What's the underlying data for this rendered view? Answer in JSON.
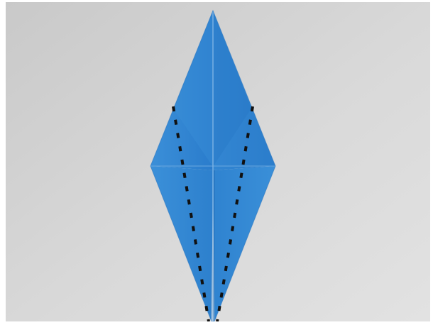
{
  "image": {
    "subject": "origami-step",
    "colors": {
      "paper_main": "#2f82cf",
      "paper_light": "#4a98dd",
      "paper_dark": "#1f6fbf",
      "background": "#d8d8d8",
      "fold_line": "#111111",
      "frame": "#ffffff"
    }
  }
}
